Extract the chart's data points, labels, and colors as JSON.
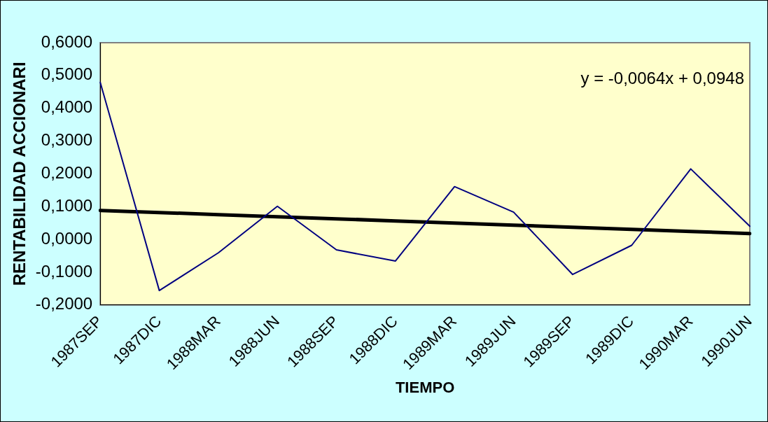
{
  "chart_data": {
    "type": "line",
    "xlabel": "TIEMPO",
    "ylabel": "RENTABILIDAD ACCIONARI",
    "categories": [
      "1987SEP",
      "1987DIC",
      "1988MAR",
      "1988JUN",
      "1988SEP",
      "1988DIC",
      "1989MAR",
      "1989JUN",
      "1989SEP",
      "1989DIC",
      "1990MAR",
      "1990JUN"
    ],
    "series": [
      {
        "color": "#000080",
        "values": [
          0.479,
          -0.156,
          -0.041,
          0.101,
          -0.032,
          -0.066,
          0.161,
          0.083,
          -0.107,
          -0.018,
          0.215,
          0.04
        ]
      },
      {
        "type": "line",
        "color": "#000000",
        "values": [
          0.0884,
          0.082,
          0.0756,
          0.0692,
          0.0628,
          0.0564,
          0.05,
          0.0436,
          0.0372,
          0.0308,
          0.0244,
          0.018
        ]
      }
    ],
    "ylim": [
      -0.2,
      0.6
    ],
    "yticks": [
      {
        "value": -0.2,
        "label": "-0,2000"
      },
      {
        "value": -0.1,
        "label": "-0,1000"
      },
      {
        "value": 0,
        "label": "0,0000"
      },
      {
        "value": 0.1,
        "label": "0,1000"
      },
      {
        "value": 0.2,
        "label": "0,2000"
      },
      {
        "value": 0.3,
        "label": "0,3000"
      },
      {
        "value": 0.4,
        "label": "0,4000"
      },
      {
        "value": 0.5,
        "label": "0,5000"
      },
      {
        "value": 0.6,
        "label": "0,6000"
      }
    ],
    "annotations": [
      "y = -0,0064x + 0,0948"
    ],
    "grid": false,
    "legend": false,
    "marker": "none",
    "line_style": "solid"
  }
}
